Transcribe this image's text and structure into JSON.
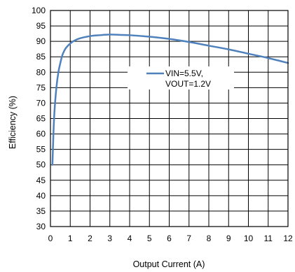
{
  "chart_data": {
    "type": "line",
    "title": "",
    "xlabel": "Output Current (A)",
    "ylabel": "Efficiency (%)",
    "xlim": [
      0,
      12
    ],
    "ylim": [
      30,
      100
    ],
    "xticks": [
      "0",
      "1",
      "2",
      "3",
      "4",
      "5",
      "6",
      "7",
      "8",
      "9",
      "10",
      "11",
      "12"
    ],
    "yticks": [
      "30",
      "35",
      "40",
      "45",
      "50",
      "55",
      "60",
      "65",
      "70",
      "75",
      "80",
      "85",
      "90",
      "95",
      "100"
    ],
    "grid": true,
    "legend_position": "center-right",
    "series": [
      {
        "name": "VIN=5.5V, VOUT=1.2V",
        "color": "#4f81bd",
        "x": [
          0.1,
          0.15,
          0.2,
          0.3,
          0.4,
          0.5,
          0.6,
          0.7,
          0.8,
          1.0,
          1.2,
          1.5,
          2.0,
          2.5,
          3.0,
          3.5,
          4.0,
          5.0,
          6.0,
          7.0,
          8.0,
          9.0,
          10.0,
          11.0,
          12.0
        ],
        "y": [
          50,
          60,
          67,
          75,
          80,
          83,
          85.5,
          87,
          88,
          89.3,
          90.2,
          91,
          91.7,
          92,
          92.2,
          92.1,
          92,
          91.5,
          90.8,
          89.8,
          88.6,
          87.4,
          86,
          84.6,
          83
        ]
      }
    ],
    "legend_lines": [
      "VIN=5.5V,",
      "VOUT=1.2V"
    ]
  }
}
